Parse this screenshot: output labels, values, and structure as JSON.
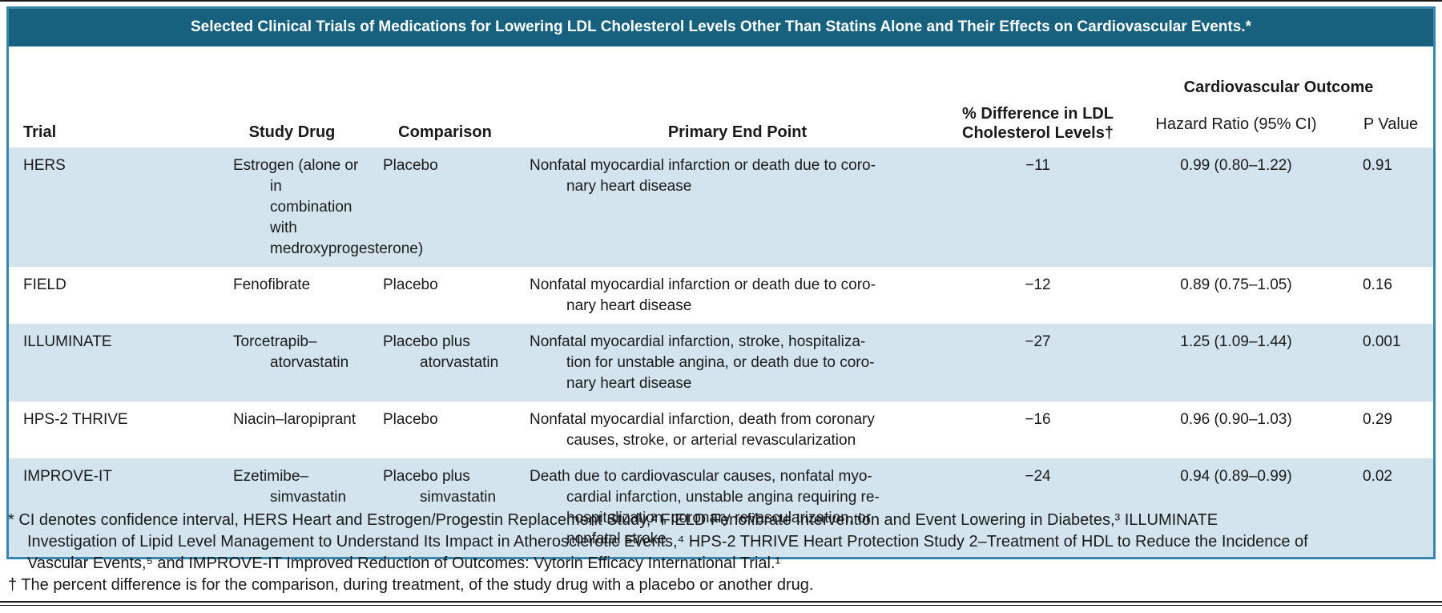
{
  "colors": {
    "title_bar": "#17617F",
    "table_border": "#3787AC",
    "row_shade": "#D3E4EF",
    "rule": "#1A1A1A"
  },
  "title": "Selected Clinical Trials of Medications for Lowering LDL Cholesterol Levels Other Than Statins Alone and Their Effects on Cardiovascular Events.*",
  "table": {
    "headers": {
      "trial": "Trial",
      "study_drug": "Study Drug",
      "comparison": "Comparison",
      "primary_end_point": "Primary End Point",
      "ldl_difference": "% Difference in LDL\nCholesterol Levels†",
      "cardiovascular_outcome": "Cardiovascular Outcome",
      "hazard_ratio": "Hazard Ratio (95% CI)",
      "p_value": "P Value"
    },
    "rows": [
      {
        "trial": "HERS",
        "study_drug": "Estrogen (alone or in\ncombination with\nmedroxyprogesterone)",
        "comparison": "Placebo",
        "primary_end_point": "Nonfatal myocardial infarction or death due to coro-\nnary heart disease",
        "ldl_difference": "−11",
        "hazard_ratio": "0.99 (0.80–1.22)",
        "p_value": "0.91"
      },
      {
        "trial": "FIELD",
        "study_drug": "Fenofibrate",
        "comparison": "Placebo",
        "primary_end_point": "Nonfatal myocardial infarction or death due to coro-\nnary heart disease",
        "ldl_difference": "−12",
        "hazard_ratio": "0.89 (0.75–1.05)",
        "p_value": "0.16"
      },
      {
        "trial": "ILLUMINATE",
        "study_drug": "Torcetrapib–atorvastatin",
        "comparison": "Placebo plus\natorvastatin",
        "primary_end_point": "Nonfatal myocardial infarction, stroke, hospitaliza-\ntion for unstable angina, or death due to coro-\nnary heart disease",
        "ldl_difference": "−27",
        "hazard_ratio": "1.25 (1.09–1.44)",
        "p_value": "0.001"
      },
      {
        "trial": "HPS-2 THRIVE",
        "study_drug": "Niacin–laropiprant",
        "comparison": "Placebo",
        "primary_end_point": "Nonfatal myocardial infarction, death from coronary\ncauses, stroke, or arterial revascularization",
        "ldl_difference": "−16",
        "hazard_ratio": "0.96 (0.90–1.03)",
        "p_value": "0.29"
      },
      {
        "trial": "IMPROVE-IT",
        "study_drug": "Ezetimibe–simvastatin",
        "comparison": "Placebo plus\nsimvastatin",
        "primary_end_point": "Death due to cardiovascular causes, nonfatal myo-\ncardial infarction, unstable angina requiring re-\nhospitalization, coronary revascularization, or\nnonfatal stroke",
        "ldl_difference": "−24",
        "hazard_ratio": "0.94 (0.89–0.99)",
        "p_value": "0.02"
      }
    ]
  },
  "footnotes": {
    "asterisk": "* CI denotes confidence interval, HERS Heart and Estrogen/Progestin Replacement Study,² FIELD Fenofibrate Intervention and Event Lowering in Diabetes,³ ILLUMINATE\nInvestigation of Lipid Level Management to Understand Its Impact in Atherosclerotic Events,⁴ HPS-2 THRIVE Heart Protection Study 2–Treatment of HDL to Reduce the Incidence of\nVascular Events,⁵ and IMPROVE-IT Improved Reduction of Outcomes: Vytorin Efficacy International Trial.¹",
    "dagger": "† The percent difference is for the comparison, during treatment, of the study drug with a placebo or another drug."
  }
}
